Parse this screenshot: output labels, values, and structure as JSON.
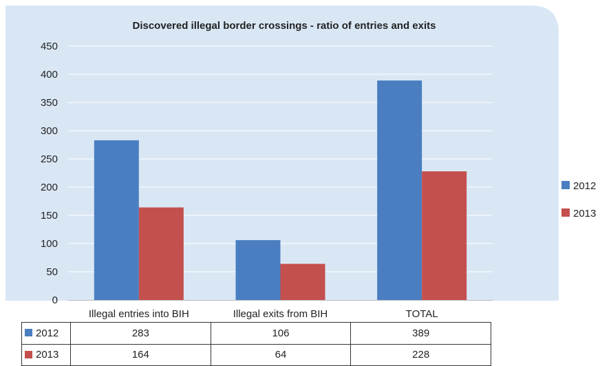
{
  "colors": {
    "series_2012": "#4a7ec1",
    "series_2013": "#c4504d",
    "plot_bg": "#d9e7f5",
    "grid": "#ffffff"
  },
  "chart_data": {
    "type": "bar",
    "title": "Discovered illegal border crossings - ratio of entries and exits",
    "categories": [
      "Illegal entries into BIH",
      "Illegal exits from BIH",
      "TOTAL"
    ],
    "series": [
      {
        "name": "2012",
        "values": [
          283,
          106,
          389
        ]
      },
      {
        "name": "2013",
        "values": [
          164,
          64,
          228
        ]
      }
    ],
    "ylim": [
      0,
      450
    ],
    "yticks": [
      0,
      50,
      100,
      150,
      200,
      250,
      300,
      350,
      400,
      450
    ],
    "grid": true,
    "legend": "right"
  },
  "table": {
    "rows": [
      {
        "label": "2012",
        "values": [
          "283",
          "106",
          "389"
        ]
      },
      {
        "label": "2013",
        "values": [
          "164",
          "64",
          "228"
        ]
      }
    ]
  }
}
